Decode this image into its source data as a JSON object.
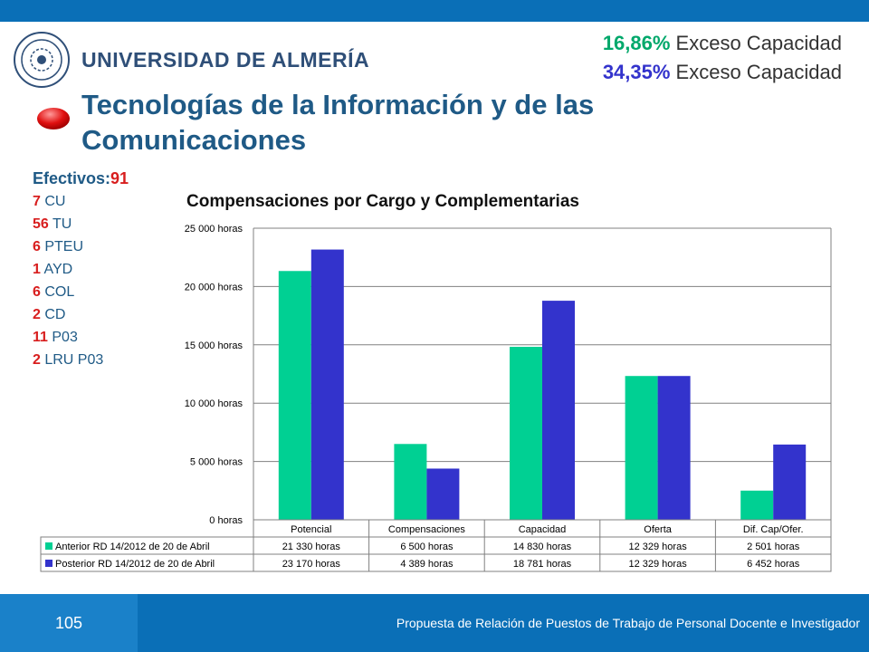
{
  "header": {
    "university": "UNIVERSIDAD DE ALMERÍA",
    "excess": [
      {
        "pct": "16,86%",
        "label": " Exceso Capacidad",
        "color": "#00a86b"
      },
      {
        "pct": "34,35%",
        "label": " Exceso Capacidad",
        "color": "#3333cc"
      }
    ],
    "title": "Tecnologías de la Información y de las Comunicaciones"
  },
  "staff": {
    "label": "Efectivos:",
    "total": "91",
    "items": [
      {
        "n": "7",
        "cat": " CU"
      },
      {
        "n": "56",
        "cat": " TU"
      },
      {
        "n": "6",
        "cat": " PTEU"
      },
      {
        "n": "1",
        "cat": " AYD"
      },
      {
        "n": "6",
        "cat": " COL"
      },
      {
        "n": "2",
        "cat": " CD"
      },
      {
        "n": "11",
        "cat": " P03"
      },
      {
        "n": "2",
        "cat": " LRU P03"
      }
    ]
  },
  "chart_data": {
    "type": "bar",
    "title": "Compensaciones por Cargo y Complementarias",
    "categories": [
      "Potencial",
      "Compensaciones",
      "Capacidad",
      "Oferta",
      "Dif. Cap/Ofer."
    ],
    "ylim": [
      0,
      25000
    ],
    "yticks": [
      "0 horas",
      "5 000 horas",
      "10 000 horas",
      "15 000 horas",
      "20 000 horas",
      "25 000 horas"
    ],
    "grid": true,
    "legend": "data-table",
    "series": [
      {
        "name": "Anterior RD 14/2012 de 20 de Abril",
        "color": "#00d093",
        "values": [
          21330,
          6500,
          14830,
          12329,
          2501
        ],
        "labels": [
          "21 330 horas",
          "6 500 horas",
          "14 830 horas",
          "12 329 horas",
          "2 501 horas"
        ]
      },
      {
        "name": "Posterior RD 14/2012 de 20 de Abril",
        "color": "#3333cc",
        "values": [
          23170,
          4389,
          18781,
          12329,
          6452
        ],
        "labels": [
          "23 170 horas",
          "4 389 horas",
          "18 781 horas",
          "12 329 horas",
          "6 452 horas"
        ]
      }
    ]
  },
  "footer": {
    "page": "105",
    "text": "Propuesta de Relación de Puestos de Trabajo de Personal Docente e Investigador"
  }
}
